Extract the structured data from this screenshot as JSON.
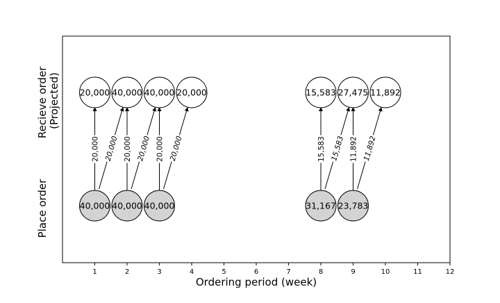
{
  "chart_data": {
    "type": "scatter",
    "xlabel": "Ordering period (week)",
    "ylabels": [
      "Recieve order",
      "(Projected)"
    ],
    "ylabel_bottom": "Place order",
    "xlim": [
      0,
      12
    ],
    "xticks": [
      1,
      2,
      3,
      4,
      5,
      6,
      7,
      8,
      9,
      10,
      11,
      12
    ],
    "colors": {
      "place_fill": "#d3d3d3",
      "receive_fill": "#ffffff",
      "stroke": "#000000"
    },
    "place_orders": [
      {
        "week": 1,
        "label": "40,000"
      },
      {
        "week": 2,
        "label": "40,000"
      },
      {
        "week": 3,
        "label": "40,000"
      },
      {
        "week": 8,
        "label": "31,167"
      },
      {
        "week": 9,
        "label": "23,783"
      }
    ],
    "receive_orders": [
      {
        "week": 1,
        "label": "20,000"
      },
      {
        "week": 2,
        "label": "40,000"
      },
      {
        "week": 3,
        "label": "40,000"
      },
      {
        "week": 4,
        "label": "20,000"
      },
      {
        "week": 8,
        "label": "15,583"
      },
      {
        "week": 9,
        "label": "27,475"
      },
      {
        "week": 10,
        "label": "11,892"
      }
    ],
    "flows": [
      {
        "from": 1,
        "to": 1,
        "label": "20,000"
      },
      {
        "from": 1,
        "to": 2,
        "label": "20,000"
      },
      {
        "from": 2,
        "to": 2,
        "label": "20,000"
      },
      {
        "from": 2,
        "to": 3,
        "label": "20,000"
      },
      {
        "from": 3,
        "to": 3,
        "label": "20,000"
      },
      {
        "from": 3,
        "to": 4,
        "label": "20,000"
      },
      {
        "from": 8,
        "to": 8,
        "label": "15,583"
      },
      {
        "from": 8,
        "to": 9,
        "label": "15,583"
      },
      {
        "from": 9,
        "to": 9,
        "label": "11,892"
      },
      {
        "from": 9,
        "to": 10,
        "label": "11,892"
      }
    ]
  }
}
